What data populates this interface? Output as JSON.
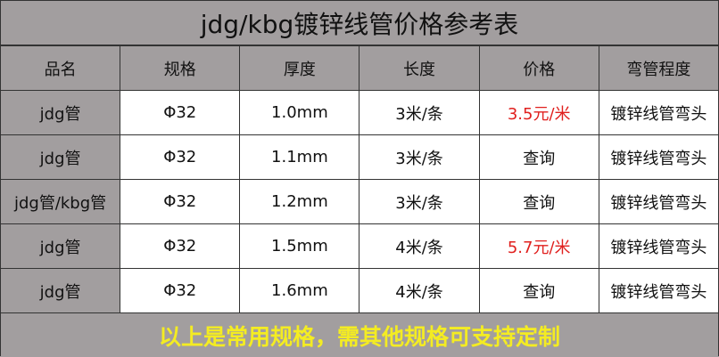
{
  "title": "jdg/kbg镀锌线管价格参考表",
  "headers": [
    "品名",
    "规格",
    "厚度",
    "长度",
    "价格",
    "弯管程度"
  ],
  "rows": [
    [
      "jdg管",
      "Φ32",
      "1.0mm",
      "3米/条",
      "3.5元/米",
      "镀锌线管弯头"
    ],
    [
      "jdg管",
      "Φ32",
      "1.1mm",
      "3米/条",
      "查询",
      "镀锌线管弯头"
    ],
    [
      "jdg管/kbg管",
      "Φ32",
      "1.2mm",
      "3米/条",
      "查询",
      "镀锌线管弯头"
    ],
    [
      "jdg管",
      "Φ32",
      "1.5mm",
      "4米/条",
      "5.7元/米",
      "镀锌线管弯头"
    ],
    [
      "jdg管",
      "Φ32",
      "1.6mm",
      "4米/条",
      "查询",
      "镀锌线管弯头"
    ]
  ],
  "highlight_color": "#e0201e",
  "footer": "以上是常用规格，需其他规格可支持定制"
}
